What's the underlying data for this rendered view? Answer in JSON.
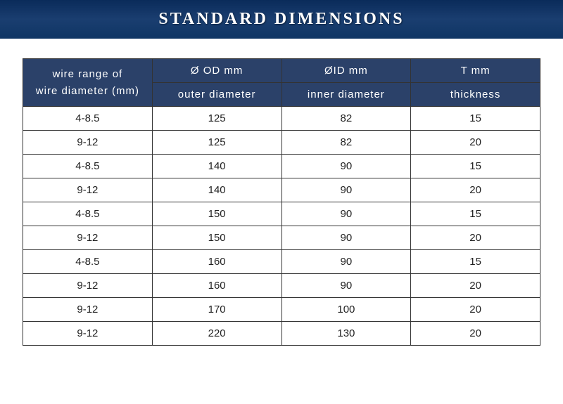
{
  "banner": {
    "title": "STANDARD DIMENSIONS",
    "bg_gradient": [
      "#0a2b5a",
      "#1a3e70",
      "#0f3564"
    ],
    "title_color": "#ffffff",
    "title_fontsize": 24,
    "title_letter_spacing": 3
  },
  "table": {
    "header_bg": "#2b4169",
    "header_text_color": "#ffffff",
    "border_color": "#333333",
    "cell_bg": "#ffffff",
    "cell_text_color": "#222222",
    "font_size": 15,
    "columns": {
      "wire_range": {
        "label_line1": "wire range of",
        "label_line2": "wire diameter (mm)"
      },
      "od": {
        "top": "Ø OD    mm",
        "sub": "outer diameter"
      },
      "id": {
        "top": "ØID    mm",
        "sub": "inner diameter"
      },
      "t": {
        "top": "T    mm",
        "sub": "thickness"
      }
    },
    "rows": [
      {
        "range": "4-8.5",
        "od": "125",
        "id": "82",
        "t": "15"
      },
      {
        "range": "9-12",
        "od": "125",
        "id": "82",
        "t": "20"
      },
      {
        "range": "4-8.5",
        "od": "140",
        "id": "90",
        "t": "15"
      },
      {
        "range": "9-12",
        "od": "140",
        "id": "90",
        "t": "20"
      },
      {
        "range": "4-8.5",
        "od": "150",
        "id": "90",
        "t": "15"
      },
      {
        "range": "9-12",
        "od": "150",
        "id": "90",
        "t": "20"
      },
      {
        "range": "4-8.5",
        "od": "160",
        "id": "90",
        "t": "15"
      },
      {
        "range": "9-12",
        "od": "160",
        "id": "90",
        "t": "20"
      },
      {
        "range": "9-12",
        "od": "170",
        "id": "100",
        "t": "20"
      },
      {
        "range": "9-12",
        "od": "220",
        "id": "130",
        "t": "20"
      }
    ]
  }
}
